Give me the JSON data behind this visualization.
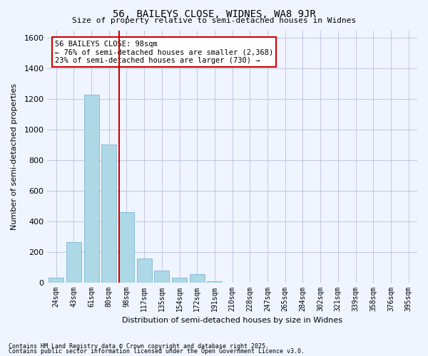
{
  "title1": "56, BAILEYS CLOSE, WIDNES, WA8 9JR",
  "title2": "Size of property relative to semi-detached houses in Widnes",
  "xlabel": "Distribution of semi-detached houses by size in Widnes",
  "ylabel": "Number of semi-detached properties",
  "annotation_title": "56 BAILEYS CLOSE: 98sqm",
  "annotation_line1": "← 76% of semi-detached houses are smaller (2,368)",
  "annotation_line2": "23% of semi-detached houses are larger (730) →",
  "property_size": 98,
  "footer1": "Contains HM Land Registry data © Crown copyright and database right 2025.",
  "footer2": "Contains public sector information licensed under the Open Government Licence v3.0.",
  "categories": [
    "24sqm",
    "43sqm",
    "61sqm",
    "80sqm",
    "98sqm",
    "117sqm",
    "135sqm",
    "154sqm",
    "172sqm",
    "191sqm",
    "210sqm",
    "228sqm",
    "247sqm",
    "265sqm",
    "284sqm",
    "302sqm",
    "321sqm",
    "339sqm",
    "358sqm",
    "376sqm",
    "395sqm"
  ],
  "values": [
    30,
    265,
    1230,
    900,
    460,
    155,
    75,
    30,
    55,
    5,
    0,
    0,
    0,
    0,
    0,
    0,
    0,
    0,
    0,
    0,
    0
  ],
  "bar_color": "#add8e6",
  "bar_edge_color": "#6baed6",
  "redline_color": "#cc0000",
  "annotation_box_color": "#cc0000",
  "background_color": "#f0f4ff",
  "grid_color": "#c0c8e0",
  "ylim": [
    0,
    1650
  ],
  "yticks": [
    0,
    200,
    400,
    600,
    800,
    1000,
    1200,
    1400,
    1600
  ]
}
